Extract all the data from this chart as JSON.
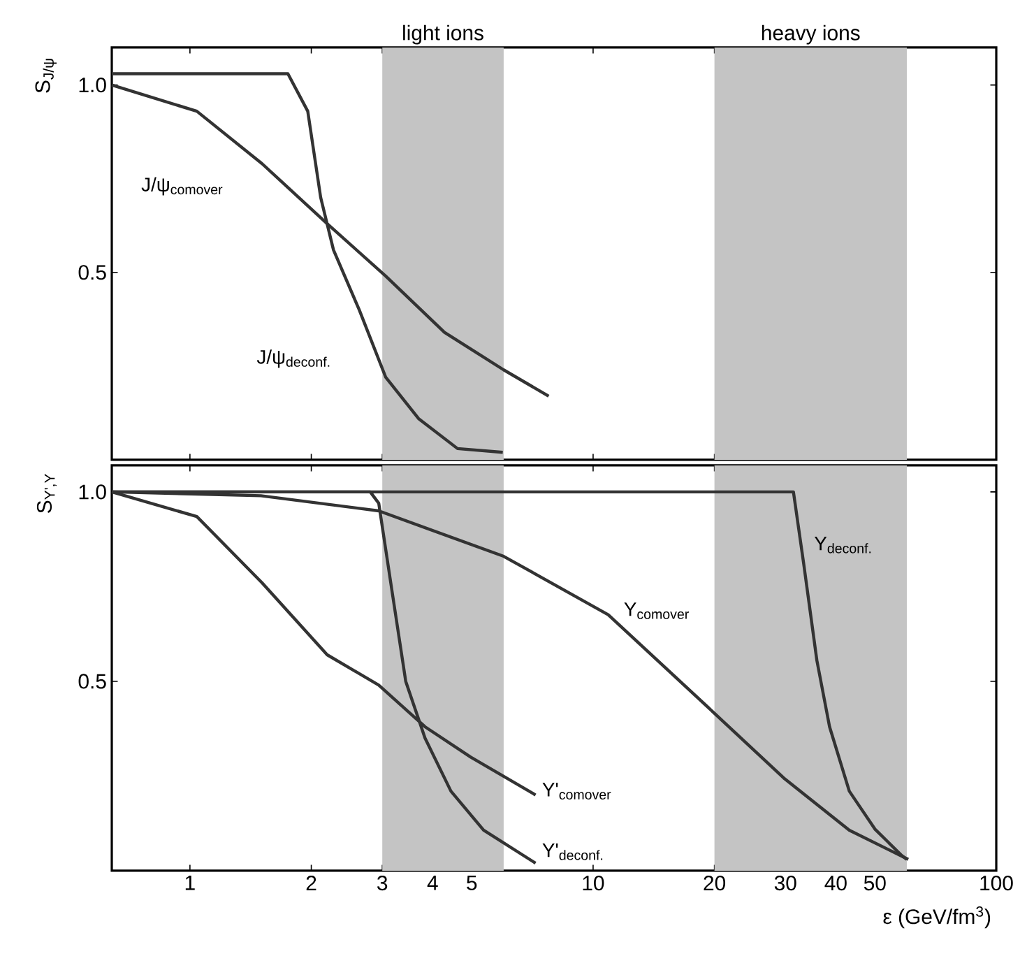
{
  "chart_data": [
    {
      "type": "line",
      "ylabel": "S$_{J/ψ}$",
      "log": "x",
      "xlim": [
        0.64,
        100
      ],
      "ylim": [
        0,
        1.1
      ],
      "xticks": [
        1,
        2,
        3,
        4,
        5,
        10,
        20,
        30,
        40,
        50,
        100
      ],
      "yticks": [
        0.5,
        {
          "value": 1.0,
          "label": "1.0"
        }
      ],
      "tick_labels": "y",
      "legend": false,
      "grid": false,
      "marker": "none",
      "line_style": "solid",
      "bands": [
        {
          "axis": "x",
          "from": 3,
          "to": 6,
          "label": "light ions",
          "color": "#c4c4c4"
        },
        {
          "axis": "x",
          "from": 20,
          "to": 60,
          "label": "heavy ions",
          "color": "#c4c4c4"
        }
      ],
      "series": [
        {
          "name": "J/ψ$_{comover}$",
          "color": "#333333",
          "x": [
            0.64,
            1.04,
            1.51,
            2.19,
            3.06,
            4.28,
            6.0,
            7.76
          ],
          "values": [
            1.0,
            0.93,
            0.79,
            0.63,
            0.49,
            0.34,
            0.24,
            0.17
          ]
        },
        {
          "name": "J/ψ$_{deconf.}$",
          "color": "#333333",
          "x": [
            0.64,
            1.75,
            1.96,
            2.11,
            2.27,
            2.63,
            3.06,
            3.69,
            4.61,
            5.97
          ],
          "values": [
            1.03,
            1.03,
            0.93,
            0.7,
            0.56,
            0.4,
            0.22,
            0.11,
            0.03,
            0.02
          ]
        }
      ]
    },
    {
      "type": "line",
      "ylabel": "S$_{Υ',Υ}$",
      "xlabel": "ε (GeV/fm$^{3}$)",
      "log": "x",
      "xlim": [
        0.64,
        100
      ],
      "ylim": [
        0,
        1.07
      ],
      "xticks": [
        1,
        2,
        3,
        4,
        5,
        10,
        20,
        30,
        40,
        50,
        100
      ],
      "yticks": [
        0.5,
        {
          "value": 1.0,
          "label": "1.0"
        }
      ],
      "legend": false,
      "grid": false,
      "marker": "none",
      "line_style": "solid",
      "bands": [
        {
          "axis": "x",
          "from": 3,
          "to": 6,
          "color": "#c4c4c4"
        },
        {
          "axis": "x",
          "from": 20,
          "to": 60,
          "color": "#c4c4c4"
        }
      ],
      "series": [
        {
          "name": "Υ$_{deconf.}$",
          "color": "#333333",
          "x": [
            0.64,
            31.4,
            33.3,
            35.9,
            38.6,
            43.2,
            50.0,
            58.3,
            60
          ],
          "values": [
            1.0,
            1.0,
            0.81,
            0.555,
            0.38,
            0.21,
            0.11,
            0.04,
            0.03
          ]
        },
        {
          "name": "Υ$_{comover}$",
          "color": "#333333",
          "x": [
            0.64,
            1.5,
            2.94,
            6.0,
            10.9,
            19.8,
            29.7,
            43.2,
            60.5
          ],
          "values": [
            1.0,
            0.99,
            0.95,
            0.83,
            0.676,
            0.42,
            0.245,
            0.107,
            0.03
          ]
        },
        {
          "name": "Υ'$_{comover}$",
          "color": "#333333",
          "x": [
            0.64,
            1.04,
            1.51,
            2.19,
            2.94,
            3.83,
            4.97,
            7.2
          ],
          "values": [
            1.0,
            0.935,
            0.76,
            0.57,
            0.49,
            0.38,
            0.3,
            0.2
          ]
        },
        {
          "name": "Υ'$_{deconf.}$",
          "color": "#333333",
          "x": [
            0.64,
            2.8,
            2.94,
            3.18,
            3.43,
            3.83,
            4.44,
            5.35,
            7.2
          ],
          "values": [
            1.0,
            1.0,
            0.97,
            0.73,
            0.5,
            0.35,
            0.21,
            0.107,
            0.02
          ]
        }
      ]
    }
  ]
}
